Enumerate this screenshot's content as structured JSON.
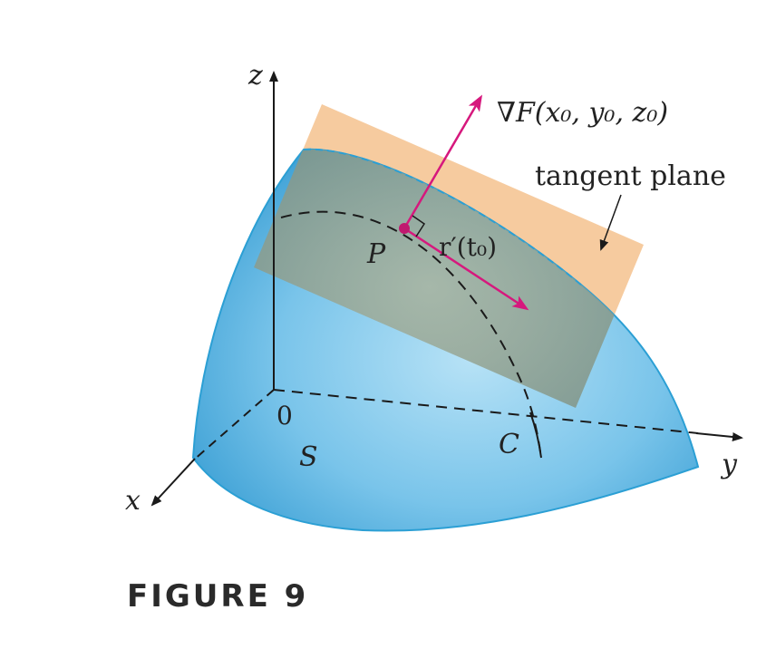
{
  "labels": {
    "z_axis": "z",
    "y_axis": "y",
    "x_axis": "x",
    "origin": "0",
    "surface": "S",
    "curve": "C",
    "point": "P",
    "tangent_vector": "r′(t₀)",
    "gradient": "∇F(x₀, y₀, z₀)",
    "tangent_plane": "tangent plane"
  },
  "caption": "FIGURE 9",
  "colors": {
    "surface_light": "#a9daf2",
    "surface_dark": "#3aa3d6",
    "surface_edge": "#2b9fd4",
    "plane_fill": "#f6c89a",
    "plane_over_surface": "#8c9a8c",
    "vector": "#d6187d",
    "axis": "#1a1a1a"
  }
}
